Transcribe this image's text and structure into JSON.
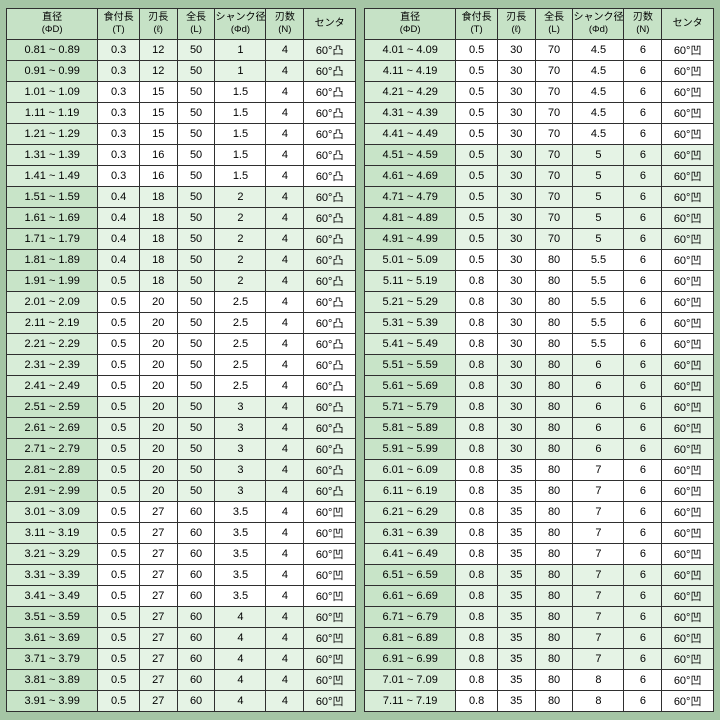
{
  "colors": {
    "pagebg": "#a5c5a5",
    "headerbg": "#c6e2c6",
    "diabg": "#d8edd8",
    "diabgshaded": "#c8e4c8",
    "rowshaded": "#e5f3e5",
    "bordercol": "#2f2f2f"
  },
  "columns": [
    {
      "title": "直径",
      "sub": "(ΦD)"
    },
    {
      "title": "食付長",
      "sub": "(T)"
    },
    {
      "title": "刃長",
      "sub": "(ℓ)"
    },
    {
      "title": "全長",
      "sub": "(L)"
    },
    {
      "title": "シャンク径",
      "sub": "(Φd)"
    },
    {
      "title": "刃数",
      "sub": "(N)"
    },
    {
      "title": "センタ",
      "sub": ""
    }
  ],
  "tables": {
    "left": {
      "rows": [
        [
          "0.81 ~ 0.89",
          "0.3",
          "12",
          "50",
          "1",
          "4",
          "60°凸"
        ],
        [
          "0.91 ~ 0.99",
          "0.3",
          "12",
          "50",
          "1",
          "4",
          "60°凸"
        ],
        [
          "1.01 ~ 1.09",
          "0.3",
          "15",
          "50",
          "1.5",
          "4",
          "60°凸"
        ],
        [
          "1.11 ~ 1.19",
          "0.3",
          "15",
          "50",
          "1.5",
          "4",
          "60°凸"
        ],
        [
          "1.21 ~ 1.29",
          "0.3",
          "15",
          "50",
          "1.5",
          "4",
          "60°凸"
        ],
        [
          "1.31 ~ 1.39",
          "0.3",
          "16",
          "50",
          "1.5",
          "4",
          "60°凸"
        ],
        [
          "1.41 ~ 1.49",
          "0.3",
          "16",
          "50",
          "1.5",
          "4",
          "60°凸"
        ],
        [
          "1.51 ~ 1.59",
          "0.4",
          "18",
          "50",
          "2",
          "4",
          "60°凸"
        ],
        [
          "1.61 ~ 1.69",
          "0.4",
          "18",
          "50",
          "2",
          "4",
          "60°凸"
        ],
        [
          "1.71 ~ 1.79",
          "0.4",
          "18",
          "50",
          "2",
          "4",
          "60°凸"
        ],
        [
          "1.81 ~ 1.89",
          "0.4",
          "18",
          "50",
          "2",
          "4",
          "60°凸"
        ],
        [
          "1.91 ~ 1.99",
          "0.5",
          "18",
          "50",
          "2",
          "4",
          "60°凸"
        ],
        [
          "2.01 ~ 2.09",
          "0.5",
          "20",
          "50",
          "2.5",
          "4",
          "60°凸"
        ],
        [
          "2.11 ~ 2.19",
          "0.5",
          "20",
          "50",
          "2.5",
          "4",
          "60°凸"
        ],
        [
          "2.21 ~ 2.29",
          "0.5",
          "20",
          "50",
          "2.5",
          "4",
          "60°凸"
        ],
        [
          "2.31 ~ 2.39",
          "0.5",
          "20",
          "50",
          "2.5",
          "4",
          "60°凸"
        ],
        [
          "2.41 ~ 2.49",
          "0.5",
          "20",
          "50",
          "2.5",
          "4",
          "60°凸"
        ],
        [
          "2.51 ~ 2.59",
          "0.5",
          "20",
          "50",
          "3",
          "4",
          "60°凸"
        ],
        [
          "2.61 ~ 2.69",
          "0.5",
          "20",
          "50",
          "3",
          "4",
          "60°凸"
        ],
        [
          "2.71 ~ 2.79",
          "0.5",
          "20",
          "50",
          "3",
          "4",
          "60°凸"
        ],
        [
          "2.81 ~ 2.89",
          "0.5",
          "20",
          "50",
          "3",
          "4",
          "60°凸"
        ],
        [
          "2.91 ~ 2.99",
          "0.5",
          "20",
          "50",
          "3",
          "4",
          "60°凸"
        ],
        [
          "3.01 ~ 3.09",
          "0.5",
          "27",
          "60",
          "3.5",
          "4",
          "60°凹"
        ],
        [
          "3.11 ~ 3.19",
          "0.5",
          "27",
          "60",
          "3.5",
          "4",
          "60°凹"
        ],
        [
          "3.21 ~ 3.29",
          "0.5",
          "27",
          "60",
          "3.5",
          "4",
          "60°凹"
        ],
        [
          "3.31 ~ 3.39",
          "0.5",
          "27",
          "60",
          "3.5",
          "4",
          "60°凹"
        ],
        [
          "3.41 ~ 3.49",
          "0.5",
          "27",
          "60",
          "3.5",
          "4",
          "60°凹"
        ],
        [
          "3.51 ~ 3.59",
          "0.5",
          "27",
          "60",
          "4",
          "4",
          "60°凹"
        ],
        [
          "3.61 ~ 3.69",
          "0.5",
          "27",
          "60",
          "4",
          "4",
          "60°凹"
        ],
        [
          "3.71 ~ 3.79",
          "0.5",
          "27",
          "60",
          "4",
          "4",
          "60°凹"
        ],
        [
          "3.81 ~ 3.89",
          "0.5",
          "27",
          "60",
          "4",
          "4",
          "60°凹"
        ],
        [
          "3.91 ~ 3.99",
          "0.5",
          "27",
          "60",
          "4",
          "4",
          "60°凹"
        ]
      ]
    },
    "right": {
      "rows": [
        [
          "4.01 ~ 4.09",
          "0.5",
          "30",
          "70",
          "4.5",
          "6",
          "60°凹"
        ],
        [
          "4.11 ~ 4.19",
          "0.5",
          "30",
          "70",
          "4.5",
          "6",
          "60°凹"
        ],
        [
          "4.21 ~ 4.29",
          "0.5",
          "30",
          "70",
          "4.5",
          "6",
          "60°凹"
        ],
        [
          "4.31 ~ 4.39",
          "0.5",
          "30",
          "70",
          "4.5",
          "6",
          "60°凹"
        ],
        [
          "4.41 ~ 4.49",
          "0.5",
          "30",
          "70",
          "4.5",
          "6",
          "60°凹"
        ],
        [
          "4.51 ~ 4.59",
          "0.5",
          "30",
          "70",
          "5",
          "6",
          "60°凹"
        ],
        [
          "4.61 ~ 4.69",
          "0.5",
          "30",
          "70",
          "5",
          "6",
          "60°凹"
        ],
        [
          "4.71 ~ 4.79",
          "0.5",
          "30",
          "70",
          "5",
          "6",
          "60°凹"
        ],
        [
          "4.81 ~ 4.89",
          "0.5",
          "30",
          "70",
          "5",
          "6",
          "60°凹"
        ],
        [
          "4.91 ~ 4.99",
          "0.5",
          "30",
          "70",
          "5",
          "6",
          "60°凹"
        ],
        [
          "5.01 ~ 5.09",
          "0.5",
          "30",
          "80",
          "5.5",
          "6",
          "60°凹"
        ],
        [
          "5.11 ~ 5.19",
          "0.8",
          "30",
          "80",
          "5.5",
          "6",
          "60°凹"
        ],
        [
          "5.21 ~ 5.29",
          "0.8",
          "30",
          "80",
          "5.5",
          "6",
          "60°凹"
        ],
        [
          "5.31 ~ 5.39",
          "0.8",
          "30",
          "80",
          "5.5",
          "6",
          "60°凹"
        ],
        [
          "5.41 ~ 5.49",
          "0.8",
          "30",
          "80",
          "5.5",
          "6",
          "60°凹"
        ],
        [
          "5.51 ~ 5.59",
          "0.8",
          "30",
          "80",
          "6",
          "6",
          "60°凹"
        ],
        [
          "5.61 ~ 5.69",
          "0.8",
          "30",
          "80",
          "6",
          "6",
          "60°凹"
        ],
        [
          "5.71 ~ 5.79",
          "0.8",
          "30",
          "80",
          "6",
          "6",
          "60°凹"
        ],
        [
          "5.81 ~ 5.89",
          "0.8",
          "30",
          "80",
          "6",
          "6",
          "60°凹"
        ],
        [
          "5.91 ~ 5.99",
          "0.8",
          "30",
          "80",
          "6",
          "6",
          "60°凹"
        ],
        [
          "6.01 ~ 6.09",
          "0.8",
          "35",
          "80",
          "7",
          "6",
          "60°凹"
        ],
        [
          "6.11 ~ 6.19",
          "0.8",
          "35",
          "80",
          "7",
          "6",
          "60°凹"
        ],
        [
          "6.21 ~ 6.29",
          "0.8",
          "35",
          "80",
          "7",
          "6",
          "60°凹"
        ],
        [
          "6.31 ~ 6.39",
          "0.8",
          "35",
          "80",
          "7",
          "6",
          "60°凹"
        ],
        [
          "6.41 ~ 6.49",
          "0.8",
          "35",
          "80",
          "7",
          "6",
          "60°凹"
        ],
        [
          "6.51 ~ 6.59",
          "0.8",
          "35",
          "80",
          "7",
          "6",
          "60°凹"
        ],
        [
          "6.61 ~ 6.69",
          "0.8",
          "35",
          "80",
          "7",
          "6",
          "60°凹"
        ],
        [
          "6.71 ~ 6.79",
          "0.8",
          "35",
          "80",
          "7",
          "6",
          "60°凹"
        ],
        [
          "6.81 ~ 6.89",
          "0.8",
          "35",
          "80",
          "7",
          "6",
          "60°凹"
        ],
        [
          "6.91 ~ 6.99",
          "0.8",
          "35",
          "80",
          "7",
          "6",
          "60°凹"
        ],
        [
          "7.01 ~ 7.09",
          "0.8",
          "35",
          "80",
          "8",
          "6",
          "60°凹"
        ],
        [
          "7.11 ~ 7.19",
          "0.8",
          "35",
          "80",
          "8",
          "6",
          "60°凹"
        ]
      ]
    }
  }
}
